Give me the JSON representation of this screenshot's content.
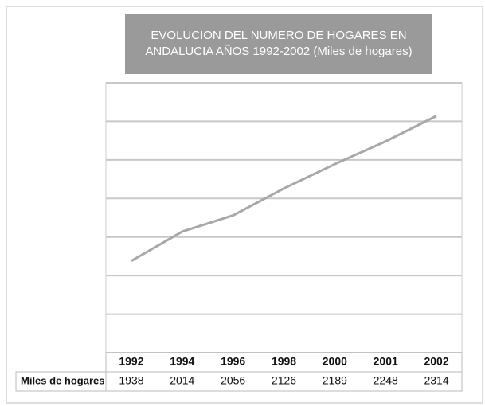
{
  "chart_data": {
    "type": "line",
    "title": "EVOLUCION DEL NUMERO DE HOGARES EN ANDALUCIA AÑOS 1992-2002 (Miles de hogares)",
    "categories": [
      "1992",
      "1994",
      "1996",
      "1998",
      "2000",
      "2001",
      "2002"
    ],
    "series": [
      {
        "name": "Miles de hogares",
        "color": "#a8a8a8",
        "values": [
          1938,
          2014,
          2056,
          2126,
          2189,
          2248,
          2314
        ]
      }
    ],
    "ylim": [
      1700,
      2400
    ],
    "yticks": [
      1700,
      1800,
      1900,
      2000,
      2100,
      2200,
      2300,
      2400
    ],
    "grid": true
  }
}
